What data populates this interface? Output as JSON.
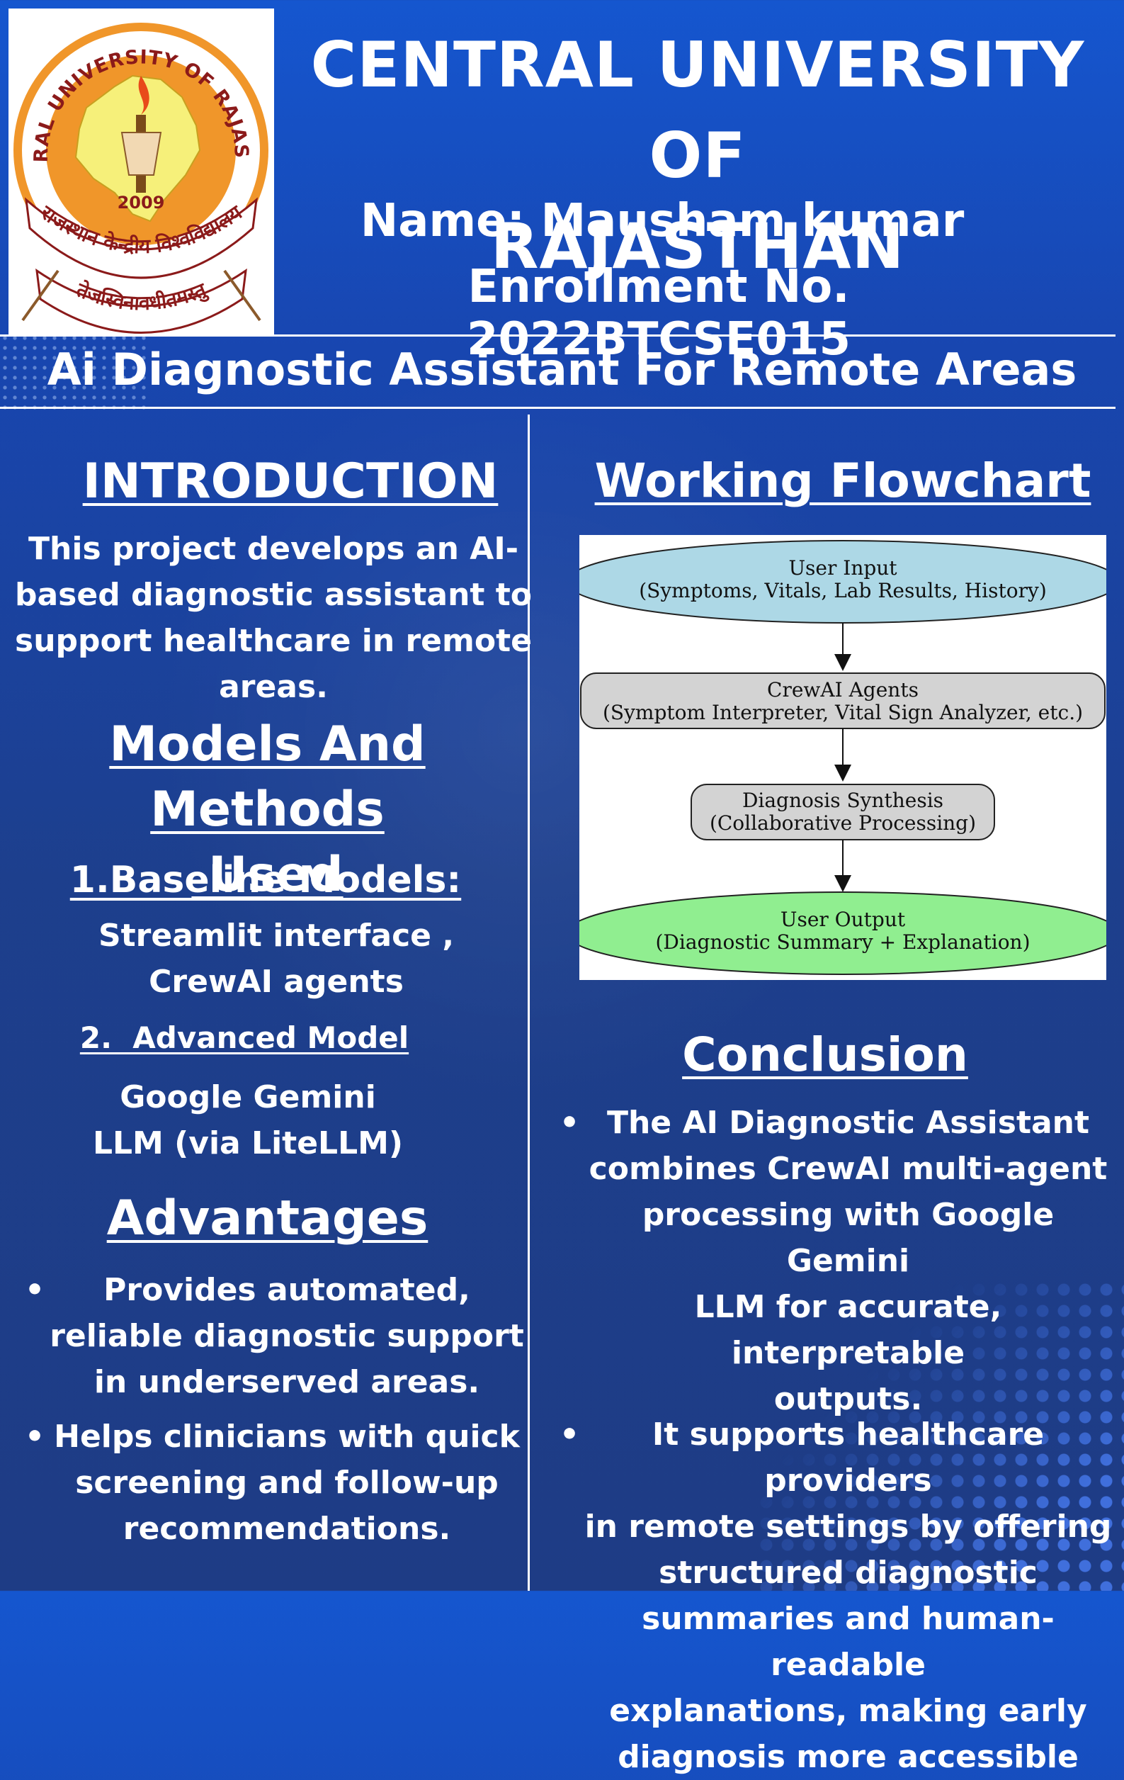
{
  "header": {
    "university_line1": "CENTRAL UNIVERSITY OF",
    "university_line2": "RAJASTHAN",
    "name": "Name: Mausham kumar",
    "enrollment": "Enrollment No. 2022BTCSE015",
    "logo": {
      "ring_top": "CENTRAL UNIVERSITY OF RAJASTHAN",
      "year": "2009",
      "hindi_name": "राजस्थान केन्द्रीय विश्वविद्यालय",
      "motto": "तेजस्विनावधीतमस्तु"
    }
  },
  "project_title": "Ai  Diagnostic Assistant For Remote Areas",
  "introduction": {
    "heading": "INTRODUCTION",
    "lines": [
      "This project develops an AI-",
      "based diagnostic assistant to",
      "support healthcare in remote",
      "areas."
    ]
  },
  "models": {
    "heading_line1": "Models And Methods",
    "heading_line2": " Used",
    "baseline_heading": "1.Baseline Models:",
    "baseline_lines": [
      "Streamlit interface ,",
      "CrewAI agents"
    ],
    "advanced_heading": "2.  Advanced Model",
    "advanced_lines": [
      "Google Gemini",
      "LLM (via LiteLLM)"
    ]
  },
  "advantages": {
    "heading": "Advantages",
    "items": [
      {
        "lines": [
          "Provides automated,",
          "reliable diagnostic support",
          "in underserved areas."
        ]
      },
      {
        "lines": [
          "Helps clinicians with quick",
          "screening and follow-up",
          "recommendations."
        ]
      }
    ]
  },
  "flowchart": {
    "heading": "Working Flowchart",
    "nodes": [
      {
        "title": "User Input",
        "detail": "(Symptoms, Vitals, Lab Results, History)",
        "fill": "#add8e6"
      },
      {
        "title": "CrewAI Agents",
        "detail": "(Symptom Interpreter, Vital Sign Analyzer, etc.)",
        "fill": "#d3d3d3"
      },
      {
        "title": "Diagnosis Synthesis",
        "detail": "(Collaborative Processing)",
        "fill": "#d3d3d3"
      },
      {
        "title": "User Output",
        "detail": "(Diagnostic Summary + Explanation)",
        "fill": "#90ee90"
      }
    ]
  },
  "conclusion": {
    "heading": "Conclusion",
    "items": [
      {
        "lines": [
          "The AI Diagnostic Assistant",
          "combines CrewAI multi-agent",
          "processing with Google Gemini",
          "LLM for accurate, interpretable",
          "outputs."
        ]
      },
      {
        "lines": [
          "It supports healthcare providers",
          "in remote settings by offering",
          "structured diagnostic",
          "summaries and human-readable",
          "explanations, making early",
          "diagnosis more accessible"
        ]
      }
    ]
  },
  "colors": {
    "background_top": "#1556cf",
    "background_bottom": "#1e3c85",
    "text": "#ffffff",
    "logo_orange": "#f0962a",
    "logo_map_yellow": "#f6f07a",
    "logo_maroon": "#8b1a1a"
  }
}
